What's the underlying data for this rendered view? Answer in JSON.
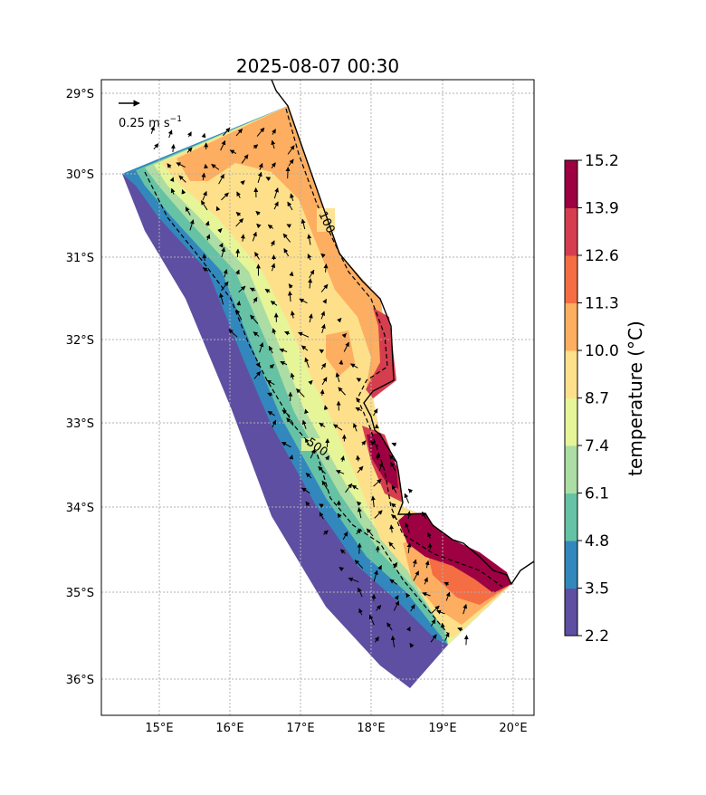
{
  "title": "2025-08-07 00:30",
  "x_ticks": [
    "15°E",
    "16°E",
    "17°E",
    "18°E",
    "19°E",
    "20°E"
  ],
  "y_ticks": [
    "29°S",
    "30°S",
    "31°S",
    "32°S",
    "33°S",
    "34°S",
    "35°S",
    "36°S"
  ],
  "colorbar": {
    "label": "temperature (°C)",
    "ticks": [
      "2.2",
      "3.5",
      "4.8",
      "6.1",
      "7.4",
      "8.7",
      "10.0",
      "11.3",
      "12.6",
      "13.9",
      "15.2"
    ],
    "levels": [
      2.2,
      3.5,
      4.8,
      6.1,
      7.4,
      8.7,
      10.0,
      11.3,
      12.6,
      13.9,
      15.2
    ],
    "colors": [
      "#5e4fa2",
      "#3288bd",
      "#66c2a5",
      "#abdda4",
      "#e6f598",
      "#fee08b",
      "#fdae61",
      "#f46d43",
      "#d53e4f",
      "#9e0142"
    ]
  },
  "reference_arrow": {
    "label": "0.25 m s",
    "superscript": "−1"
  },
  "contours": [
    {
      "label": "100"
    },
    {
      "label": "500"
    }
  ],
  "colors": {
    "grid": "#b0b0b0",
    "coast": "#000000",
    "frame": "#000000"
  }
}
